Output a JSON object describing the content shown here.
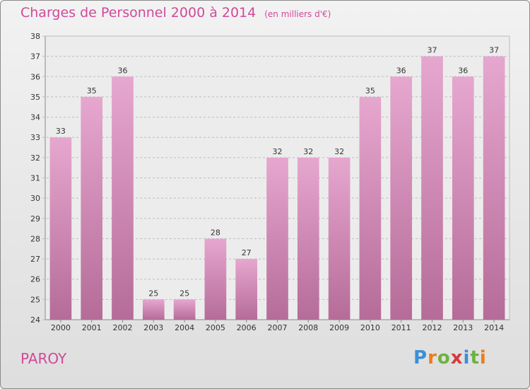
{
  "header": {
    "title": "Charges de Personnel 2000 à 2014",
    "subtitle": "(en milliers d'€)"
  },
  "footer": {
    "commune": "PAROY",
    "logo": [
      "P",
      "r",
      "o",
      "x",
      "i",
      "t",
      "i"
    ]
  },
  "colors": {
    "title": "#d0499a",
    "bar_top": "#e6a7cf",
    "bar_bottom": "#b56c98",
    "grid": "#bdbdbd"
  },
  "chart_data": {
    "type": "bar",
    "title": "Charges de Personnel 2000 à 2014",
    "subtitle": "(en milliers d'€)",
    "categories": [
      "2000",
      "2001",
      "2002",
      "2003",
      "2004",
      "2005",
      "2006",
      "2007",
      "2008",
      "2009",
      "2010",
      "2011",
      "2012",
      "2013",
      "2014"
    ],
    "values": [
      33,
      35,
      36,
      25,
      25,
      28,
      27,
      32,
      32,
      32,
      35,
      36,
      37,
      36,
      37
    ],
    "ylim": [
      24,
      38
    ],
    "yticks": [
      24,
      25,
      26,
      27,
      28,
      29,
      30,
      31,
      32,
      33,
      34,
      35,
      36,
      37,
      38
    ],
    "grid": true,
    "legend": "none"
  }
}
